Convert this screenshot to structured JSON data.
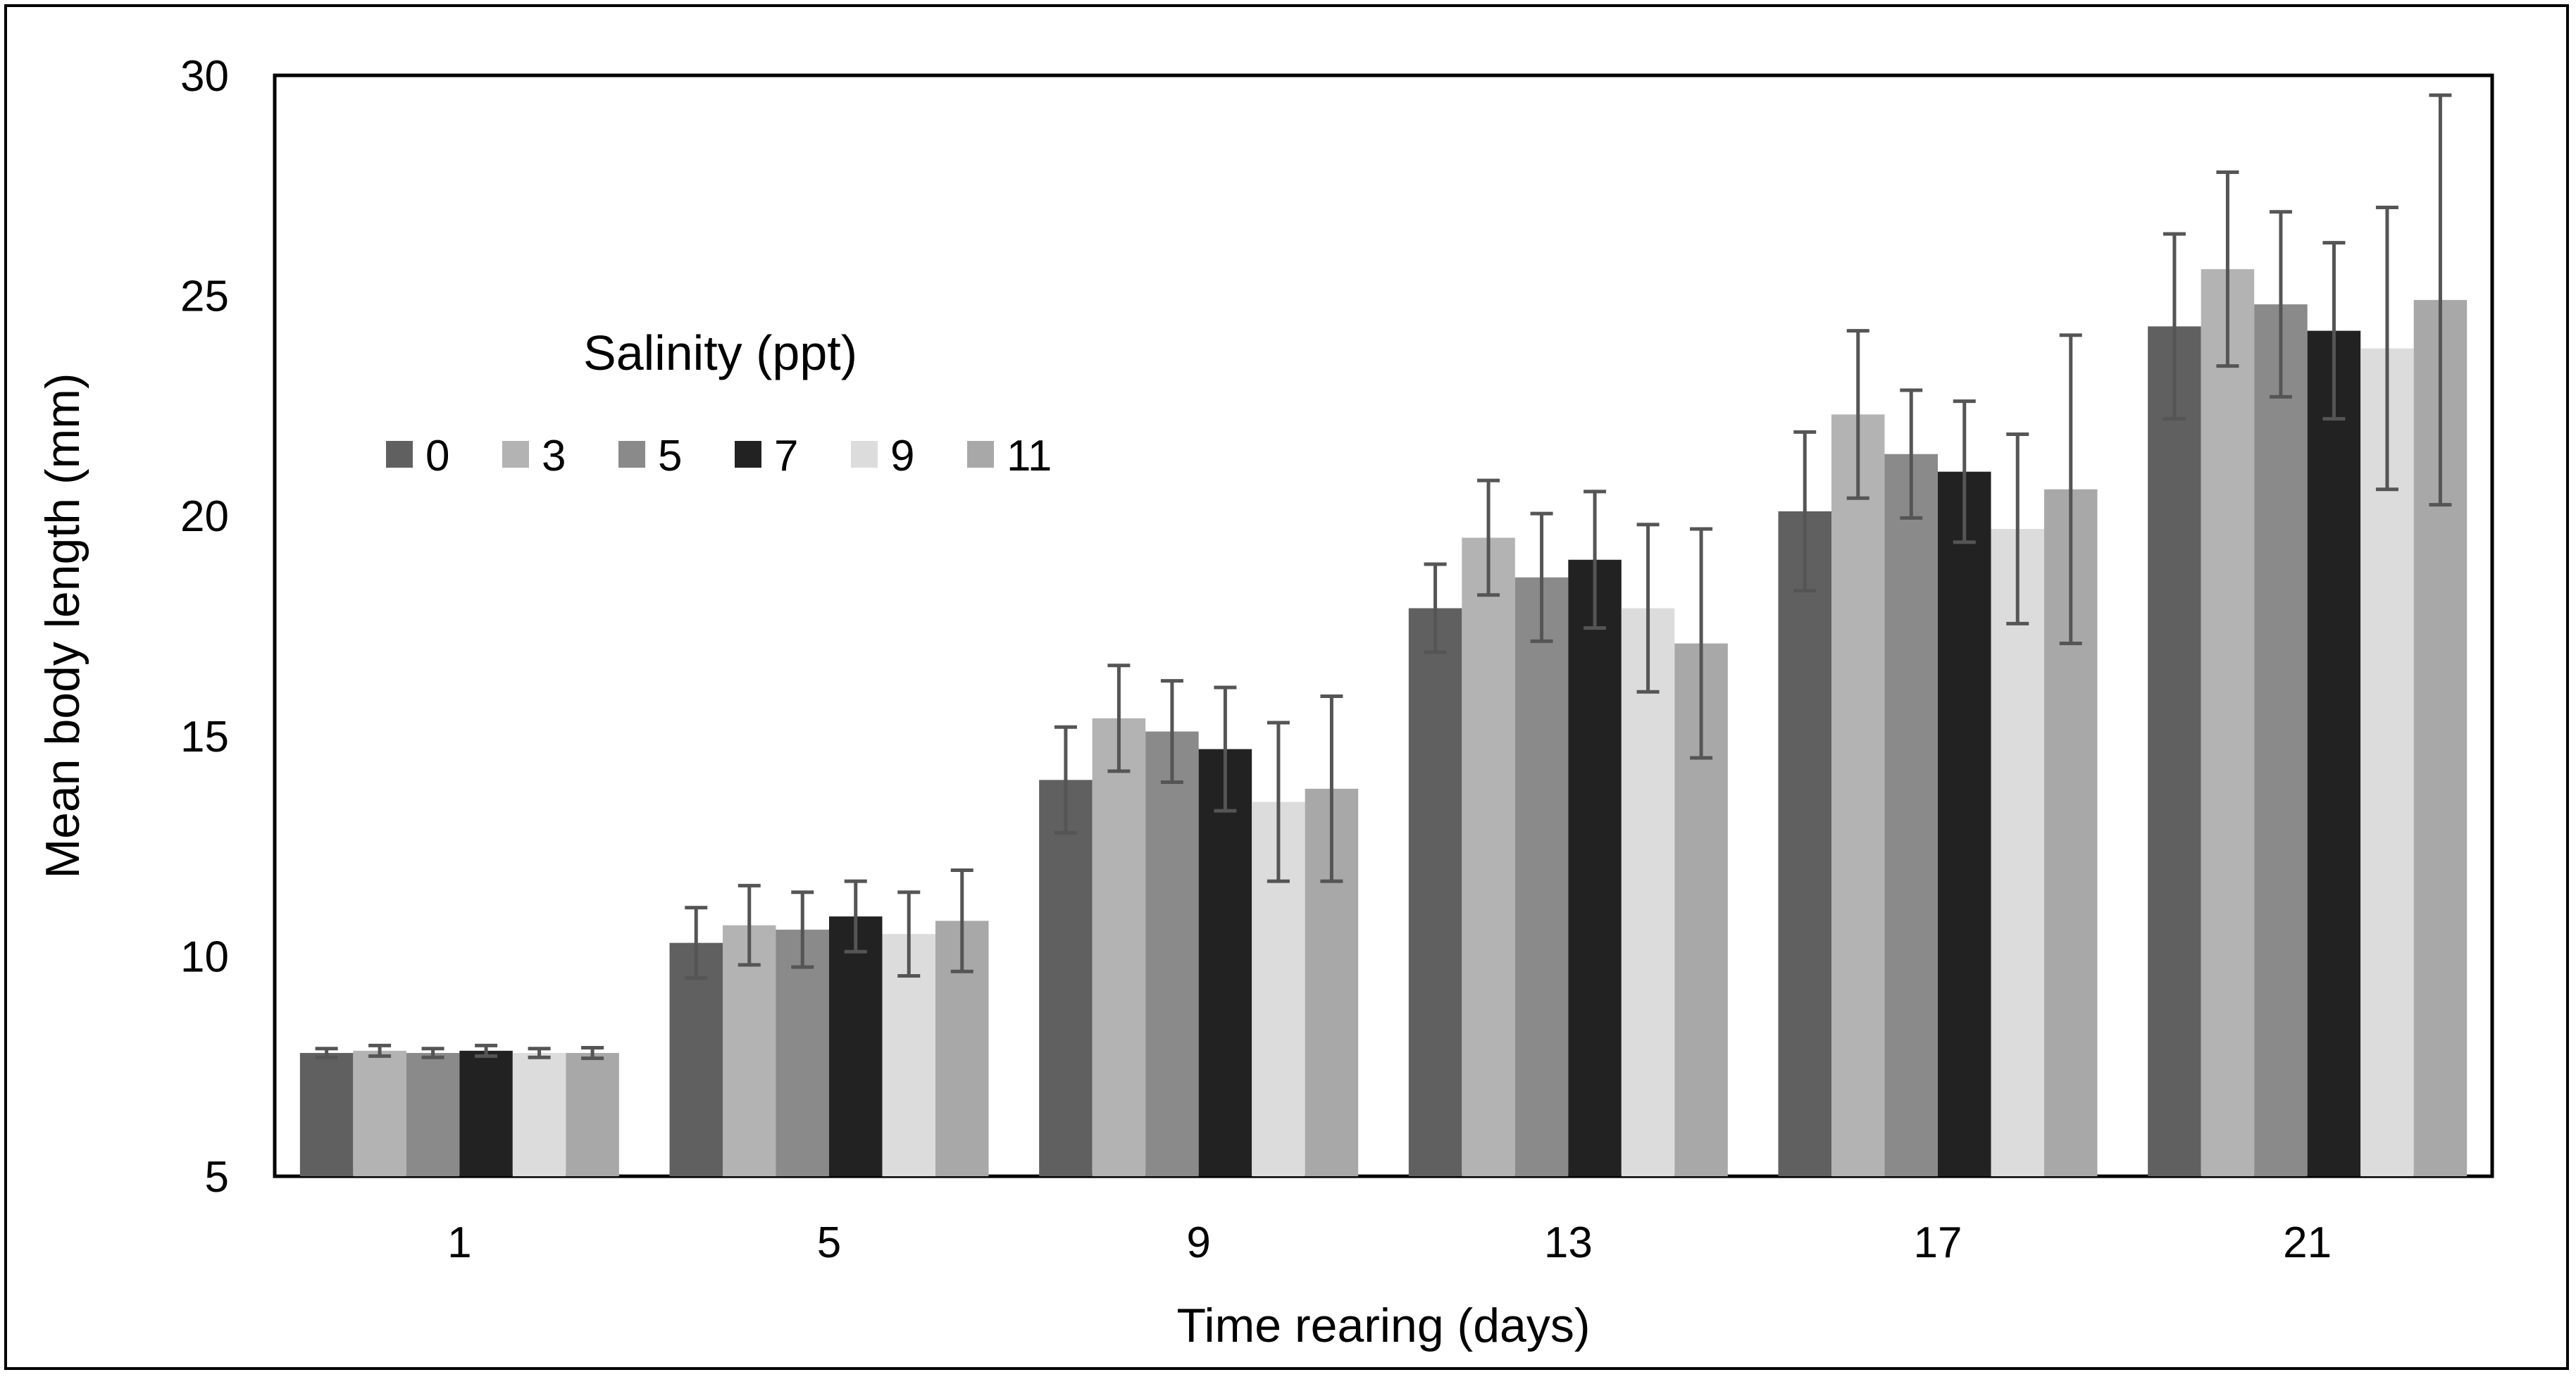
{
  "chart_data": {
    "type": "bar",
    "title": "",
    "xlabel": "Time rearing (days)",
    "ylabel": "Mean body length (mm)",
    "ylim": [
      5,
      30
    ],
    "yticks": [
      5,
      10,
      15,
      20,
      25,
      30
    ],
    "categories": [
      "1",
      "5",
      "9",
      "13",
      "17",
      "21"
    ],
    "legend": {
      "title": "Salinity (ppt)",
      "placement": "upper-left"
    },
    "series": [
      {
        "name": "0",
        "color": "#606060",
        "values": [
          7.8,
          10.3,
          14.0,
          17.9,
          20.1,
          24.3
        ],
        "errors": [
          0.1,
          0.8,
          1.2,
          1.0,
          1.8,
          2.1
        ]
      },
      {
        "name": "3",
        "color": "#b3b3b3",
        "values": [
          7.85,
          10.7,
          15.4,
          19.5,
          22.3,
          25.6
        ],
        "errors": [
          0.12,
          0.9,
          1.2,
          1.3,
          1.9,
          2.2
        ]
      },
      {
        "name": "5",
        "color": "#8a8a8a",
        "values": [
          7.8,
          10.6,
          15.1,
          18.6,
          21.4,
          24.8
        ],
        "errors": [
          0.1,
          0.85,
          1.15,
          1.45,
          1.45,
          2.1
        ]
      },
      {
        "name": "7",
        "color": "#222222",
        "values": [
          7.85,
          10.9,
          14.7,
          19.0,
          21.0,
          24.2
        ],
        "errors": [
          0.12,
          0.8,
          1.4,
          1.55,
          1.6,
          2.0
        ]
      },
      {
        "name": "9",
        "color": "#dcdcdc",
        "values": [
          7.8,
          10.5,
          13.5,
          17.9,
          19.7,
          23.8
        ],
        "errors": [
          0.1,
          0.95,
          1.8,
          1.9,
          2.15,
          3.2
        ]
      },
      {
        "name": "11",
        "color": "#a8a8a8",
        "values": [
          7.8,
          10.8,
          13.8,
          17.1,
          20.6,
          24.9
        ],
        "errors": [
          0.12,
          1.15,
          2.1,
          2.6,
          3.5,
          4.65
        ]
      }
    ],
    "error_bar_color": "#555555",
    "grid": false
  }
}
